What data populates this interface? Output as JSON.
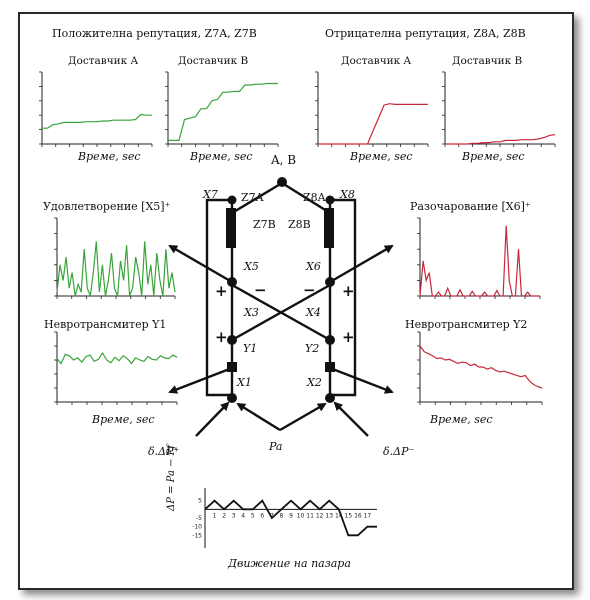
{
  "headers": {
    "pos_reputation": "Положителна репутация, Z7A, Z7B",
    "neg_reputation": "Отрицателна репутация, Z8A, Z8B",
    "satisfaction": "Удовлетворение [X5]⁺",
    "disappointment": "Разочарование [X6]⁺",
    "neuro1": "Невротрансмитер Y1",
    "neuro2": "Невротрансмитер Y2",
    "market": "Движение на пазара"
  },
  "supplier_titles": {
    "posA": "Доставчик A",
    "posB": "Доставчик B",
    "negA": "Доставчик A",
    "negB": "Доставчик B"
  },
  "time_labels": {
    "t1": "Време, sec",
    "t2": "Време, sec",
    "t3": "Време, sec",
    "t4": "Време, sec",
    "t5": "Време, sec"
  },
  "node_labels": {
    "ab": "A, B",
    "x7": "X7",
    "x8": "X8",
    "z7a": "Z7A",
    "z8a": "Z8A",
    "z7b": "Z7B",
    "z8b": "Z8B",
    "x5": "X5",
    "x6": "X6",
    "x3": "X3",
    "x4": "X4",
    "y1": "Y1",
    "y2": "Y2",
    "x1": "X1",
    "x2": "X2",
    "dp_plus": "δ.ΔP⁺",
    "dp_minus": "δ.ΔP⁻",
    "pa": "Pa",
    "delta_p_axis": "ΔP = Pa − Pf",
    "plus1": "+",
    "plus2": "+",
    "plus3": "+",
    "plus4": "+",
    "minus1": "−",
    "minus2": "−"
  },
  "colors": {
    "positive": "#3aa43a",
    "negative": "#c8283c",
    "ink": "#111111"
  },
  "chart_data": [
    {
      "type": "line",
      "title": "Доставчик A",
      "series_color": "#3aa43a",
      "x": [
        0,
        1,
        2,
        3,
        4,
        5,
        6,
        7,
        8,
        9,
        10,
        11,
        12,
        13,
        14,
        15,
        16,
        17,
        18,
        19,
        20
      ],
      "values": [
        0.22,
        0.22,
        0.27,
        0.28,
        0.3,
        0.3,
        0.3,
        0.3,
        0.31,
        0.31,
        0.31,
        0.32,
        0.32,
        0.33,
        0.33,
        0.33,
        0.33,
        0.34,
        0.41,
        0.4,
        0.4
      ],
      "ylim": [
        0,
        1
      ]
    },
    {
      "type": "line",
      "title": "Доставчик B",
      "series_color": "#3aa43a",
      "x": [
        0,
        1,
        2,
        3,
        4,
        5,
        6,
        7,
        8,
        9,
        10,
        11,
        12,
        13,
        14,
        15,
        16,
        17,
        18,
        19,
        20
      ],
      "values": [
        0.05,
        0.05,
        0.05,
        0.34,
        0.36,
        0.38,
        0.49,
        0.49,
        0.6,
        0.62,
        0.72,
        0.72,
        0.73,
        0.73,
        0.82,
        0.82,
        0.83,
        0.83,
        0.84,
        0.84,
        0.84
      ],
      "ylim": [
        0,
        1
      ]
    },
    {
      "type": "line",
      "title": "Доставчик A",
      "series_color": "#c8283c",
      "x": [
        0,
        1,
        2,
        3,
        4,
        5,
        6,
        7,
        8,
        9,
        10,
        11,
        12,
        13,
        14,
        15,
        16,
        17,
        18,
        19,
        20
      ],
      "values": [
        0,
        0,
        0,
        0,
        0,
        0,
        0,
        0,
        0,
        0,
        0.18,
        0.36,
        0.54,
        0.56,
        0.55,
        0.55,
        0.55,
        0.55,
        0.55,
        0.55,
        0.55
      ],
      "ylim": [
        0,
        1
      ]
    },
    {
      "type": "line",
      "title": "Доставчик B",
      "series_color": "#c8283c",
      "x": [
        0,
        1,
        2,
        3,
        4,
        5,
        6,
        7,
        8,
        9,
        10,
        11,
        12,
        13,
        14,
        15,
        16,
        17,
        18,
        19,
        20
      ],
      "values": [
        0,
        0,
        0,
        0,
        0,
        0.01,
        0.01,
        0.02,
        0.02,
        0.03,
        0.03,
        0.05,
        0.05,
        0.05,
        0.06,
        0.06,
        0.06,
        0.07,
        0.09,
        0.12,
        0.13
      ],
      "ylim": [
        0,
        1
      ]
    },
    {
      "type": "line",
      "title": "Удовлетворение [X5]⁺",
      "series_color": "#3aa43a",
      "x": [
        0,
        1,
        2,
        3,
        4,
        5,
        6,
        7,
        8,
        9,
        10,
        11,
        12,
        13,
        14,
        15,
        16,
        17,
        18,
        19,
        20,
        21,
        22,
        23,
        24,
        25,
        26,
        27,
        28,
        29,
        30,
        31,
        32,
        33,
        34,
        35,
        36,
        37,
        38,
        39
      ],
      "values": [
        0.05,
        0.4,
        0.2,
        0.5,
        0.1,
        0.3,
        0.0,
        0.15,
        0.05,
        0.6,
        0.1,
        0.0,
        0.3,
        0.7,
        0.05,
        0.4,
        0.0,
        0.2,
        0.55,
        0.1,
        0.0,
        0.45,
        0.2,
        0.65,
        0.0,
        0.1,
        0.5,
        0.3,
        0.0,
        0.7,
        0.15,
        0.4,
        0.0,
        0.55,
        0.2,
        0.0,
        0.6,
        0.1,
        0.3,
        0.05
      ],
      "ylim": [
        0,
        1
      ]
    },
    {
      "type": "line",
      "title": "Разочарование [X6]⁺",
      "series_color": "#c8283c",
      "x": [
        0,
        1,
        2,
        3,
        4,
        5,
        6,
        7,
        8,
        9,
        10,
        11,
        12,
        13,
        14,
        15,
        16,
        17,
        18,
        19,
        20,
        21,
        22,
        23,
        24,
        25,
        26,
        27,
        28,
        29,
        30,
        31,
        32,
        33,
        34,
        35,
        36,
        37,
        38,
        39
      ],
      "values": [
        0.0,
        0.45,
        0.2,
        0.3,
        0.0,
        0.0,
        0.05,
        0.0,
        0.0,
        0.1,
        0.0,
        0.0,
        0.0,
        0.08,
        0.0,
        0.0,
        0.0,
        0.06,
        0.0,
        0.0,
        0.0,
        0.05,
        0.0,
        0.0,
        0.0,
        0.07,
        0.0,
        0.0,
        0.9,
        0.2,
        0.0,
        0.0,
        0.6,
        0.0,
        0.0,
        0.05,
        0.0,
        0.0,
        0.0,
        0.0
      ],
      "ylim": [
        0,
        1
      ]
    },
    {
      "type": "line",
      "title": "Невротрансмитер Y1",
      "series_color": "#3aa43a",
      "x": [
        0,
        1,
        2,
        3,
        4,
        5,
        6,
        7,
        8,
        9,
        10,
        11,
        12,
        13,
        14,
        15,
        16,
        17,
        18,
        19,
        20,
        21,
        22,
        23,
        24,
        25,
        26,
        27,
        28,
        29
      ],
      "values": [
        0.62,
        0.55,
        0.68,
        0.66,
        0.6,
        0.63,
        0.57,
        0.65,
        0.67,
        0.58,
        0.61,
        0.7,
        0.6,
        0.56,
        0.64,
        0.59,
        0.66,
        0.62,
        0.55,
        0.63,
        0.6,
        0.58,
        0.65,
        0.61,
        0.6,
        0.66,
        0.63,
        0.62,
        0.67,
        0.64
      ],
      "ylim": [
        0,
        1
      ]
    },
    {
      "type": "line",
      "title": "Невротрансмитер Y2",
      "series_color": "#c8283c",
      "x": [
        0,
        1,
        2,
        3,
        4,
        5,
        6,
        7,
        8,
        9,
        10,
        11,
        12,
        13,
        14,
        15,
        16,
        17,
        18,
        19,
        20,
        21,
        22,
        23,
        24,
        25,
        26,
        27,
        28,
        29
      ],
      "values": [
        0.8,
        0.72,
        0.69,
        0.66,
        0.62,
        0.63,
        0.6,
        0.61,
        0.58,
        0.55,
        0.57,
        0.56,
        0.52,
        0.54,
        0.5,
        0.5,
        0.47,
        0.49,
        0.45,
        0.43,
        0.44,
        0.42,
        0.4,
        0.38,
        0.36,
        0.38,
        0.3,
        0.25,
        0.22,
        0.2
      ],
      "ylim": [
        0,
        1
      ]
    },
    {
      "type": "line",
      "title": "Движение на пазара",
      "x": [
        0,
        1,
        2,
        3,
        4,
        5,
        6,
        7,
        8,
        9,
        10,
        11,
        12,
        13,
        14,
        15,
        16,
        17,
        18
      ],
      "values": [
        0,
        5,
        0,
        5,
        0,
        0,
        5,
        -5,
        0,
        5,
        0,
        5,
        0,
        5,
        0,
        -15,
        -15,
        -10,
        -10
      ],
      "x_ticks": [
        "1",
        "2",
        "3",
        "4",
        "5",
        "6",
        "7",
        "8",
        "9",
        "10",
        "11",
        "12",
        "13",
        "14",
        "15",
        "16",
        "17"
      ],
      "y_ticks": [
        "5",
        "-5",
        "-10",
        "-15"
      ],
      "ylim": [
        -20,
        10
      ]
    }
  ]
}
